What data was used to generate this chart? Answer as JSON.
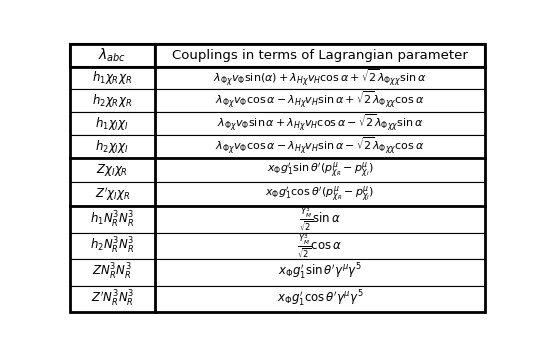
{
  "col0_header": "$\\lambda_{abc}$",
  "col1_header": "Couplings in terms of Lagrangian parameter",
  "section1_rows": [
    [
      "$h_1\\chi_R\\chi_R$",
      "$\\lambda_{\\Phi\\chi}v_\\Phi\\sin(\\alpha)+\\lambda_{H\\chi}v_H\\cos\\alpha+\\sqrt{2}\\lambda_{\\Phi\\chi\\chi}\\sin\\alpha$"
    ],
    [
      "$h_2\\chi_R\\chi_R$",
      "$\\lambda_{\\Phi\\chi}v_\\Phi\\cos\\alpha-\\lambda_{H\\chi}v_H\\sin\\alpha+\\sqrt{2}\\lambda_{\\Phi\\chi\\chi}\\cos\\alpha$"
    ],
    [
      "$h_1\\chi_I\\chi_I$",
      "$\\lambda_{\\Phi\\chi}v_\\Phi\\sin\\alpha+\\lambda_{H\\chi}v_H\\cos\\alpha-\\sqrt{2}\\lambda_{\\Phi\\chi\\chi}\\sin\\alpha$"
    ],
    [
      "$h_2\\chi_I\\chi_I$",
      "$\\lambda_{\\Phi\\chi}v_\\Phi\\cos\\alpha-\\lambda_{H\\chi}v_H\\sin\\alpha-\\sqrt{2}\\lambda_{\\Phi\\chi\\chi}\\cos\\alpha$"
    ]
  ],
  "section2_rows": [
    [
      "$Z\\chi_I\\chi_R$",
      "$x_\\Phi g_1^\\prime\\sin\\theta^\\prime(p^\\mu_{\\chi_R}-p^\\mu_{\\chi_I})$"
    ],
    [
      "$Z^\\prime\\chi_I\\chi_R$",
      "$x_\\Phi g_1^\\prime\\cos\\theta^\\prime(p^\\mu_{\\chi_R}-p^\\mu_{\\chi_I})$"
    ]
  ],
  "section3_rows": [
    [
      "$h_1 N^3_R N^3_R$",
      "$\\frac{Y^3_M}{\\sqrt{2}}\\sin\\alpha$"
    ],
    [
      "$h_2 N^3_R N^3_R$",
      "$\\frac{Y^3_M}{\\sqrt{2}}\\cos\\alpha$"
    ],
    [
      "$ZN^3_R N^3_R$",
      "$x_\\Phi g_1^\\prime\\sin\\theta^\\prime\\gamma^\\mu\\gamma^5$"
    ],
    [
      "$Z^\\prime N^3_R N^3_R$",
      "$x_\\Phi g_1^\\prime\\cos\\theta^\\prime\\gamma^\\mu\\gamma^5$"
    ]
  ],
  "bg_color": "white",
  "line_color": "black",
  "text_color": "black",
  "col_split": 0.205,
  "figwidth": 5.41,
  "figheight": 3.52,
  "dpi": 100
}
